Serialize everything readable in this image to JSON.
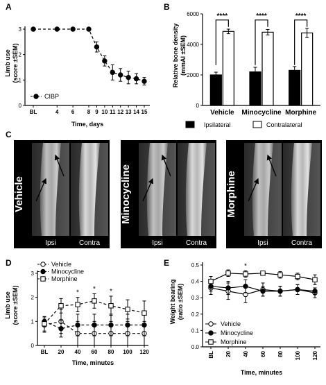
{
  "chart_data": [
    {
      "panel": "A",
      "type": "line",
      "ylabel": "Limb use\n(score ±SEM)",
      "xlabel": "Time, days",
      "ylim": [
        0,
        3
      ],
      "yticks": [
        "0",
        "1",
        "2",
        "3"
      ],
      "x": [
        "BL",
        "4",
        "6",
        "8",
        "9",
        "10",
        "11",
        "12",
        "13",
        "14",
        "15"
      ],
      "series": [
        {
          "name": "CIBP",
          "values": [
            3,
            3,
            3,
            3,
            2.3,
            1.75,
            1.3,
            1.2,
            1.1,
            1.05,
            0.95
          ],
          "sem": [
            0,
            0,
            0,
            0,
            0.2,
            0.2,
            0.3,
            0.25,
            0.25,
            0.2,
            0.15
          ]
        }
      ]
    },
    {
      "panel": "B",
      "type": "bar",
      "ylabel": "Relative bone density\n(mmAl ±SEM)",
      "ylim": [
        0,
        6000
      ],
      "yticks": [
        "0",
        "2000",
        "4000",
        "6000"
      ],
      "categories": [
        "Vehicle",
        "Minocycline",
        "Morphine"
      ],
      "series": [
        {
          "name": "Ipsilateral",
          "values": [
            2000,
            2200,
            2300
          ],
          "sem": [
            180,
            300,
            250
          ],
          "color": "#000000"
        },
        {
          "name": "Contralateral",
          "values": [
            4850,
            4800,
            4750
          ],
          "sem": [
            150,
            180,
            300
          ],
          "color": "#ffffff"
        }
      ],
      "significance": [
        "****",
        "****",
        "****"
      ]
    },
    {
      "panel": "D",
      "type": "line",
      "ylabel": "Limb use\n(score ±SEM)",
      "xlabel": "Time, minutes",
      "ylim": [
        0,
        3
      ],
      "yticks": [
        "0",
        "1",
        "2",
        "3"
      ],
      "x": [
        "BL",
        "20",
        "40",
        "60",
        "80",
        "100",
        "120"
      ],
      "series": [
        {
          "name": "Vehicle",
          "values": [
            0.85,
            1.0,
            0.5,
            0.5,
            0.5,
            0.5,
            0.5
          ],
          "sem": [
            0.3,
            0.5,
            0.5,
            0.5,
            0.5,
            0.5,
            0.5
          ]
        },
        {
          "name": "Minocycline",
          "values": [
            1.0,
            0.7,
            0.85,
            0.85,
            0.85,
            0.85,
            0.85
          ],
          "sem": [
            0.2,
            0.35,
            0.45,
            0.45,
            0.45,
            0.45,
            0.45
          ]
        },
        {
          "name": "Morphine",
          "values": [
            0.9,
            1.65,
            1.7,
            1.85,
            1.65,
            1.5,
            1.35
          ],
          "sem": [
            0.3,
            0.3,
            0.3,
            0.3,
            0.4,
            0.4,
            0.5
          ]
        }
      ],
      "significance_at": [
        "40",
        "60",
        "80"
      ],
      "significance": [
        "*",
        "*",
        "*"
      ]
    },
    {
      "panel": "E",
      "type": "line",
      "ylabel": "Weight bearing\n(ratio ±SEM)",
      "xlabel": "Time, minutes",
      "ylim": [
        0,
        0.5
      ],
      "yticks": [
        "0.0",
        "0.1",
        "0.2",
        "0.3",
        "0.4",
        "0.5"
      ],
      "x": [
        "BL",
        "20",
        "40",
        "60",
        "80",
        "100",
        "120"
      ],
      "series": [
        {
          "name": "Vehicle",
          "values": [
            0.36,
            0.34,
            0.32,
            0.35,
            0.34,
            0.35,
            0.33
          ],
          "sem": [
            0.04,
            0.05,
            0.05,
            0.04,
            0.03,
            0.03,
            0.03
          ]
        },
        {
          "name": "Minocycline",
          "values": [
            0.37,
            0.36,
            0.37,
            0.34,
            0.34,
            0.35,
            0.34
          ],
          "sem": [
            0.03,
            0.04,
            0.04,
            0.03,
            0.03,
            0.03,
            0.02
          ]
        },
        {
          "name": "Morphine",
          "values": [
            0.4,
            0.45,
            0.445,
            0.45,
            0.44,
            0.43,
            0.41
          ],
          "sem": [
            0.03,
            0.02,
            0.02,
            0.01,
            0.02,
            0.02,
            0.03
          ]
        }
      ],
      "significance_at": [
        "40"
      ],
      "significance": [
        "*"
      ]
    }
  ],
  "panel_c": {
    "letter": "C",
    "images": [
      {
        "treatment": "Vehicle",
        "sides": [
          "Ipsi",
          "Contra"
        ]
      },
      {
        "treatment": "Minocycline",
        "sides": [
          "Ipsi",
          "Contra"
        ]
      },
      {
        "treatment": "Morphine",
        "sides": [
          "Ipsi",
          "Contra"
        ]
      }
    ]
  }
}
